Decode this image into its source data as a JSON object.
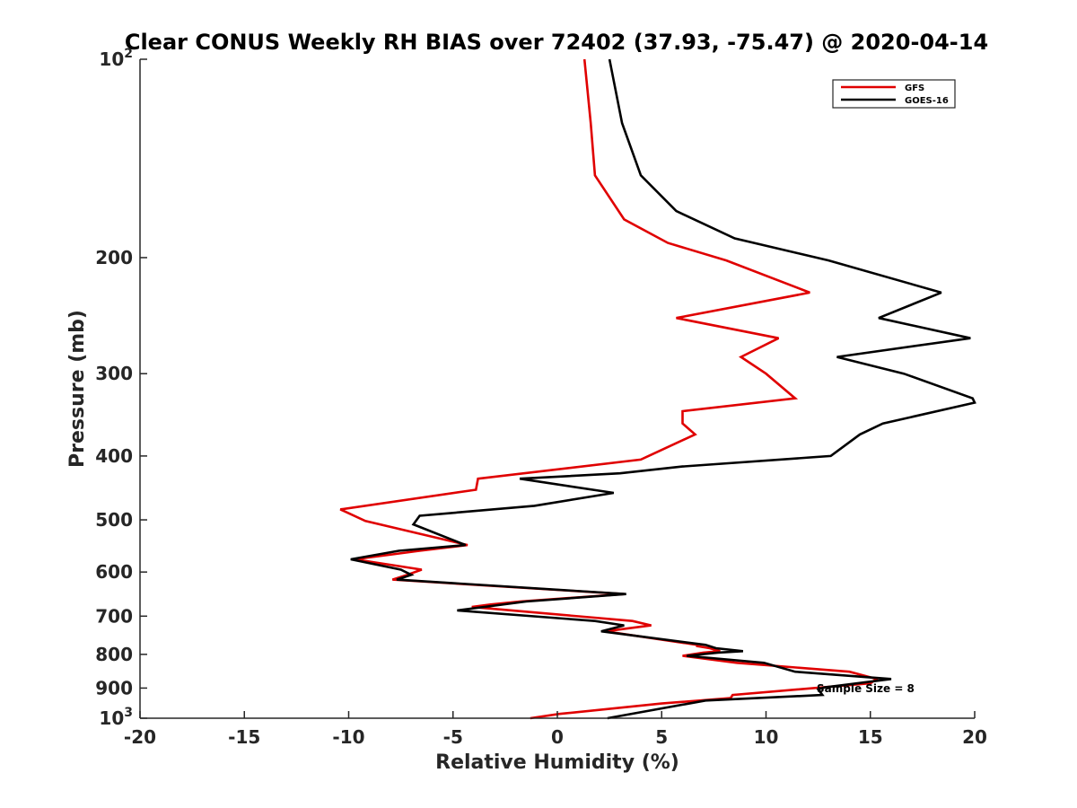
{
  "chart_data": {
    "type": "line",
    "title": "Clear CONUS Weekly RH BIAS over 72402 (37.93, -75.47) @ 2020-04-14",
    "xlabel": "Relative Humidity (%)",
    "ylabel": "Pressure (mb)",
    "xlim": [
      -20,
      20
    ],
    "ylim": [
      100,
      1000
    ],
    "yscale": "log",
    "y_reversed": true,
    "x_ticks": [
      -20,
      -15,
      -10,
      -5,
      0,
      5,
      10,
      15,
      20
    ],
    "x_tick_labels": [
      "-20",
      "-15",
      "-10",
      "-5",
      "0",
      "5",
      "10",
      "15",
      "20"
    ],
    "y_ticks": [
      200,
      300,
      400,
      500,
      600,
      700,
      800,
      900
    ],
    "y_tick_labels": [
      "200",
      "300",
      "400",
      "500",
      "600",
      "700",
      "800",
      "900"
    ],
    "y_exp_ticks": [
      {
        "value": 100,
        "base": "10",
        "exp": "2"
      },
      {
        "value": 1000,
        "base": "10",
        "exp": "3"
      }
    ],
    "legend_position": "top-right",
    "annotation": "Sample Size = 8",
    "series": [
      {
        "name": "GFS",
        "color": "#e00000",
        "points": [
          [
            1.3,
            100
          ],
          [
            1.6,
            125
          ],
          [
            1.8,
            150
          ],
          [
            3.2,
            175
          ],
          [
            5.3,
            190
          ],
          [
            8.1,
            202
          ],
          [
            12.1,
            226
          ],
          [
            5.7,
            247
          ],
          [
            10.6,
            265
          ],
          [
            8.8,
            283
          ],
          [
            10.0,
            300
          ],
          [
            11.4,
            327
          ],
          [
            6.0,
            342
          ],
          [
            6.0,
            357
          ],
          [
            6.6,
            371
          ],
          [
            4.0,
            405
          ],
          [
            -3.8,
            433
          ],
          [
            -3.9,
            450
          ],
          [
            -10.4,
            482
          ],
          [
            -9.2,
            502
          ],
          [
            -4.3,
            546
          ],
          [
            -6.6,
            557
          ],
          [
            -9.7,
            574
          ],
          [
            -6.5,
            595
          ],
          [
            -7.2,
            606
          ],
          [
            -7.9,
            616
          ],
          [
            3.2,
            648
          ],
          [
            -1.8,
            665
          ],
          [
            -3.2,
            672
          ],
          [
            -4.1,
            678
          ],
          [
            3.6,
            712
          ],
          [
            4.5,
            723
          ],
          [
            2.3,
            738
          ],
          [
            6.7,
            774
          ],
          [
            6.7,
            777
          ],
          [
            7.3,
            783
          ],
          [
            7.8,
            791
          ],
          [
            7.0,
            795
          ],
          [
            6.0,
            804
          ],
          [
            8.6,
            824
          ],
          [
            14.0,
            850
          ],
          [
            15.3,
            872
          ],
          [
            15.0,
            885
          ],
          [
            8.4,
            922
          ],
          [
            8.3,
            932
          ],
          [
            5.0,
            950
          ],
          [
            0.1,
            985
          ],
          [
            -1.3,
            1000
          ]
        ]
      },
      {
        "name": "GOES-16",
        "color": "#000000",
        "points": [
          [
            2.5,
            100
          ],
          [
            3.1,
            125
          ],
          [
            4.0,
            150
          ],
          [
            5.7,
            170
          ],
          [
            8.5,
            187
          ],
          [
            13.0,
            202
          ],
          [
            18.4,
            226
          ],
          [
            15.4,
            247
          ],
          [
            19.8,
            265
          ],
          [
            13.4,
            283
          ],
          [
            16.6,
            300
          ],
          [
            19.9,
            327
          ],
          [
            20.0,
            332
          ],
          [
            15.6,
            357
          ],
          [
            14.5,
            371
          ],
          [
            13.1,
            400
          ],
          [
            6.0,
            415
          ],
          [
            3.0,
            425
          ],
          [
            -1.8,
            433
          ],
          [
            2.7,
            455
          ],
          [
            -1.1,
            476
          ],
          [
            -6.6,
            493
          ],
          [
            -6.9,
            508
          ],
          [
            -4.4,
            546
          ],
          [
            -7.6,
            557
          ],
          [
            -9.9,
            574
          ],
          [
            -7.5,
            595
          ],
          [
            -7.0,
            606
          ],
          [
            -7.7,
            616
          ],
          [
            3.3,
            648
          ],
          [
            -1.5,
            665
          ],
          [
            -4.8,
            686
          ],
          [
            1.8,
            712
          ],
          [
            3.2,
            723
          ],
          [
            2.1,
            738
          ],
          [
            7.1,
            774
          ],
          [
            7.6,
            783
          ],
          [
            8.9,
            791
          ],
          [
            7.7,
            795
          ],
          [
            6.2,
            804
          ],
          [
            9.9,
            824
          ],
          [
            11.4,
            850
          ],
          [
            16.0,
            872
          ],
          [
            12.8,
            898
          ],
          [
            12.5,
            904
          ],
          [
            12.7,
            922
          ],
          [
            7.1,
            940
          ],
          [
            2.4,
            1000
          ]
        ]
      }
    ]
  }
}
